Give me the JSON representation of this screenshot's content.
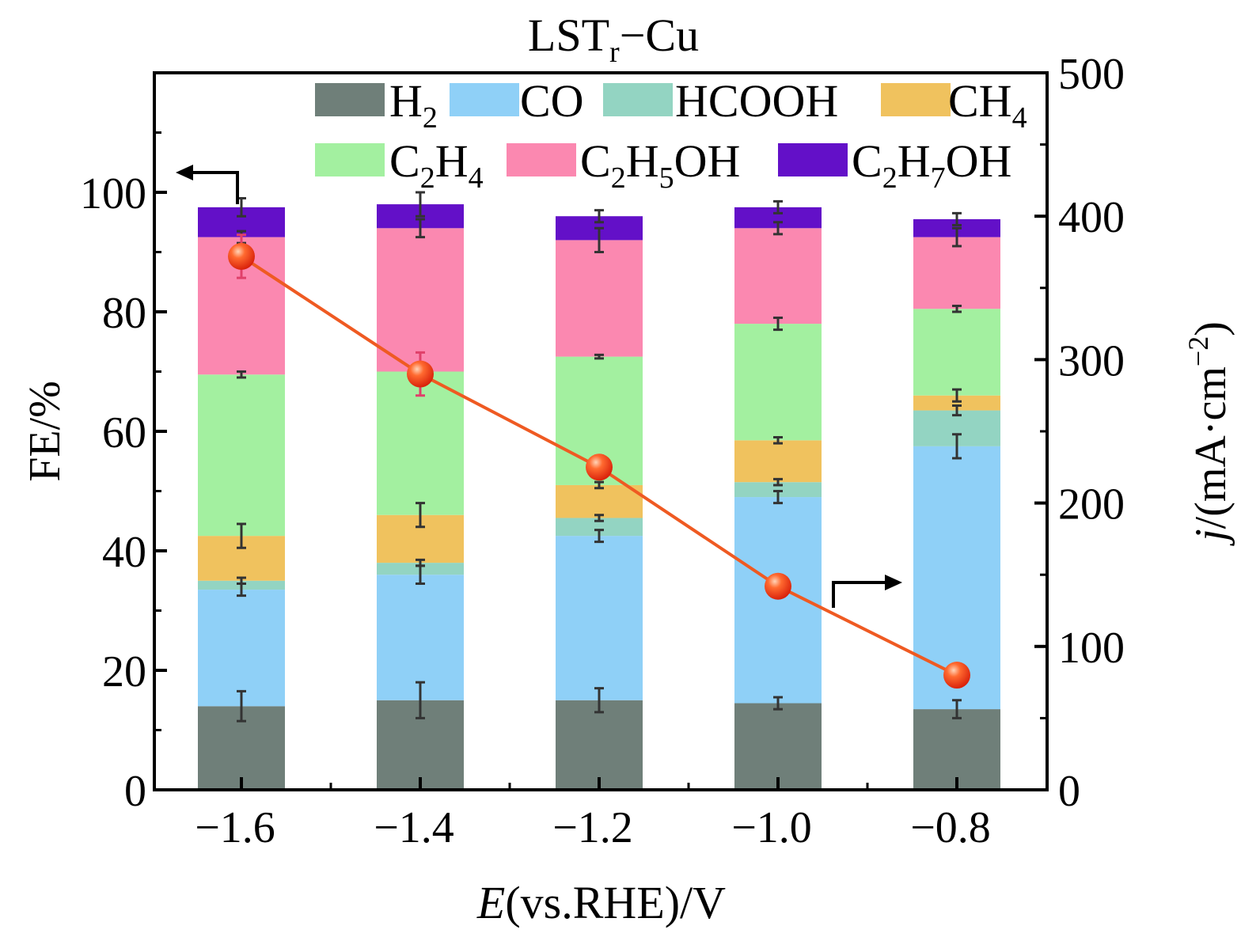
{
  "chart_data": {
    "type": "bar",
    "stacked": true,
    "title": "LSTr−Cu",
    "title_main": "LST",
    "title_sub": "r",
    "title_tail": "−Cu",
    "xlabel_italic": "E",
    "xlabel_rest": "(vs.RHE)/V",
    "ylabel": "FE/%",
    "y2label_italic": "j",
    "y2label_rest": "/(mA·cm",
    "y2label_sup": "−2",
    "y2label_close": ")",
    "categories": [
      "−1.6",
      "−1.4",
      "−1.2",
      "−1.0",
      "−0.8"
    ],
    "ylim": [
      0,
      120
    ],
    "yticks": [
      "0",
      "20",
      "40",
      "60",
      "80",
      "100"
    ],
    "y2lim": [
      0,
      500
    ],
    "y2ticks": [
      "0",
      "100",
      "200",
      "300",
      "400",
      "500"
    ],
    "series": [
      {
        "name": "H2",
        "label_main": "H",
        "label_sub": "2",
        "label_tail": "",
        "color": "#6f7f79",
        "values": [
          14,
          15,
          15,
          14.5,
          13.5
        ],
        "errors": [
          2.5,
          3,
          2,
          1,
          1.5
        ]
      },
      {
        "name": "CO",
        "label_main": "CO",
        "label_sub": "",
        "label_tail": "",
        "color": "#8fd0f7",
        "values": [
          19.5,
          21,
          27.5,
          34.5,
          44
        ],
        "errors": [
          1,
          1.5,
          1,
          1,
          2
        ]
      },
      {
        "name": "HCOOH",
        "label_main": "HCOOH",
        "label_sub": "",
        "label_tail": "",
        "color": "#93d4c2",
        "values": [
          1.5,
          2,
          3,
          2.5,
          6
        ],
        "errors": [
          0.5,
          0.5,
          0.5,
          0.5,
          0.8
        ]
      },
      {
        "name": "CH4",
        "label_main": "CH",
        "label_sub": "4",
        "label_tail": "",
        "color": "#f0c25e",
        "values": [
          7.5,
          8,
          5.5,
          7,
          2.5
        ],
        "errors": [
          2,
          2,
          0.5,
          0.5,
          1
        ]
      },
      {
        "name": "C2H4",
        "label_main": "C",
        "label_sub": "2",
        "label_tail": "H",
        "label_sub2": "4",
        "color": "#a3f0a0",
        "values": [
          27,
          24,
          21.5,
          19.5,
          14.5
        ],
        "errors": [
          0.5,
          0.5,
          0.3,
          1,
          0.5
        ]
      },
      {
        "name": "C2H5OH",
        "label_main": "C",
        "label_sub": "2",
        "label_tail": "H",
        "label_sub2": "5",
        "label_end": "OH",
        "color": "#fb88b0",
        "values": [
          23,
          24,
          19.5,
          16,
          12
        ],
        "errors": [
          1,
          1.5,
          2,
          1,
          1.5
        ]
      },
      {
        "name": "C2H7OH",
        "label_main": "C",
        "label_sub": "2",
        "label_tail": "H",
        "label_sub2": "7",
        "label_end": "OH",
        "color": "#6310c8",
        "values": [
          5,
          4,
          4,
          3.5,
          3
        ],
        "errors": [
          1.5,
          2,
          1,
          1,
          1
        ]
      }
    ],
    "line_series": {
      "axis": "right",
      "color": "#ef5a22",
      "values": [
        372,
        290,
        225,
        142,
        80
      ],
      "errors": [
        15,
        15,
        8,
        4,
        4
      ]
    },
    "legend": "top-right, inside plot, two rows"
  }
}
